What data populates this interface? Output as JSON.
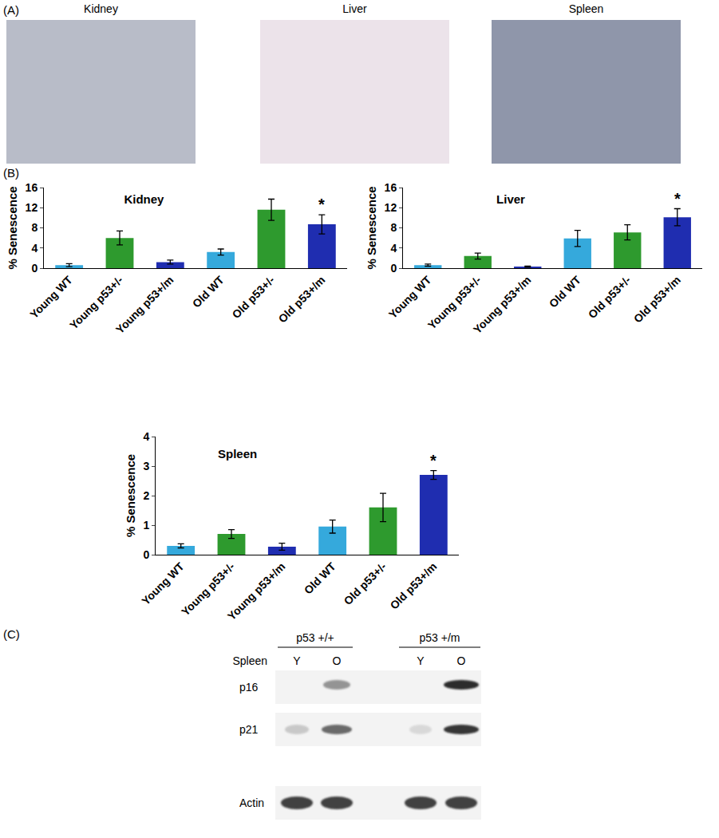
{
  "chart_data": [
    {
      "type": "bar",
      "title": "Kidney",
      "y_label": "% Senescence",
      "categories": [
        "Young WT",
        "Young p53+/-",
        "Young p53+/m",
        "Old WT",
        "Old p53+/-",
        "Old p53+/m"
      ],
      "values": [
        0.6,
        6.0,
        1.2,
        3.2,
        11.6,
        8.7
      ],
      "errors": [
        0.3,
        1.4,
        0.4,
        0.6,
        2.1,
        1.9
      ],
      "colors": [
        "#35a9dc",
        "#2e9a2e",
        "#1f2db0",
        "#35a9dc",
        "#2e9a2e",
        "#1f2db0"
      ],
      "ylim": [
        0,
        16
      ],
      "yticks": [
        0,
        4,
        8,
        12,
        16
      ],
      "grid": false,
      "annotations": [
        {
          "category": "Old p53+/m",
          "text": "*"
        }
      ]
    },
    {
      "type": "bar",
      "title": "Liver",
      "y_label": "% Senescence",
      "categories": [
        "Young WT",
        "Young p53+/-",
        "Young p53+/m",
        "Old WT",
        "Old p53+/-",
        "Old p53+/m"
      ],
      "values": [
        0.6,
        2.4,
        0.3,
        5.9,
        7.1,
        10.1
      ],
      "errors": [
        0.2,
        0.6,
        0.1,
        1.6,
        1.5,
        1.7
      ],
      "colors": [
        "#35a9dc",
        "#2e9a2e",
        "#1f2db0",
        "#35a9dc",
        "#2e9a2e",
        "#1f2db0"
      ],
      "ylim": [
        0,
        16
      ],
      "yticks": [
        0,
        4,
        8,
        12,
        16
      ],
      "grid": false,
      "annotations": [
        {
          "category": "Old p53+/m",
          "text": "*"
        }
      ]
    },
    {
      "type": "bar",
      "title": "Spleen",
      "y_label": "% Senescence",
      "categories": [
        "Young WT",
        "Young p53+/-",
        "Young p53+/m",
        "Old WT",
        "Old p53+/-",
        "Old p53+/m"
      ],
      "values": [
        0.3,
        0.7,
        0.27,
        0.95,
        1.6,
        2.7
      ],
      "errors": [
        0.07,
        0.15,
        0.12,
        0.22,
        0.48,
        0.15
      ],
      "colors": [
        "#35a9dc",
        "#2e9a2e",
        "#1f2db0",
        "#35a9dc",
        "#2e9a2e",
        "#1f2db0"
      ],
      "ylim": [
        0,
        4
      ],
      "yticks": [
        0,
        1,
        2,
        3,
        4
      ],
      "grid": false,
      "annotations": [
        {
          "category": "Old p53+/m",
          "text": "*"
        }
      ]
    }
  ],
  "panel_labels": [
    "(A)",
    "(B)",
    "(C)"
  ],
  "micrographs": [
    {
      "title": "Kidney"
    },
    {
      "title": "Liver"
    },
    {
      "title": "Spleen"
    }
  ],
  "blot": {
    "groups": [
      "p53 +/+",
      "p53 +/m"
    ],
    "tissue": "Spleen",
    "lanes": [
      "Y",
      "O",
      "Y",
      "O"
    ],
    "rows": [
      "p16",
      "p21",
      "Actin"
    ]
  }
}
